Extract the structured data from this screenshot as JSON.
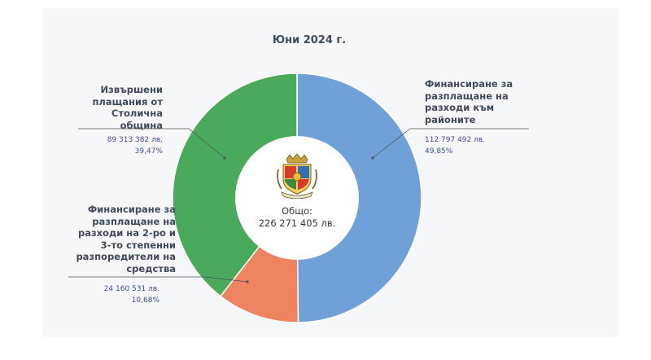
{
  "chart_data": {
    "type": "pie",
    "title": "Юни 2024 г.",
    "center_label": "Общо:",
    "center_total": "226 271 405 лв.",
    "slices": [
      {
        "label": "Финансиране за разплащане на разходи към районите",
        "amount": "112 797 492 лв.",
        "percent_text": "49,85%",
        "value": 49.85,
        "color": "#6fa0d8"
      },
      {
        "label": "Финансиране за разплащане на разходи на 2-ро и 3-то степенни разпоредители на средства",
        "amount": "24 160 531 лв.",
        "percent_text": "10,68%",
        "value": 10.68,
        "color": "#ee845f"
      },
      {
        "label": "Извършени плащания от Столична община",
        "amount": "89 313 382 лв.",
        "percent_text": "39,47%",
        "value": 39.47,
        "color": "#4aaa5b"
      }
    ]
  }
}
